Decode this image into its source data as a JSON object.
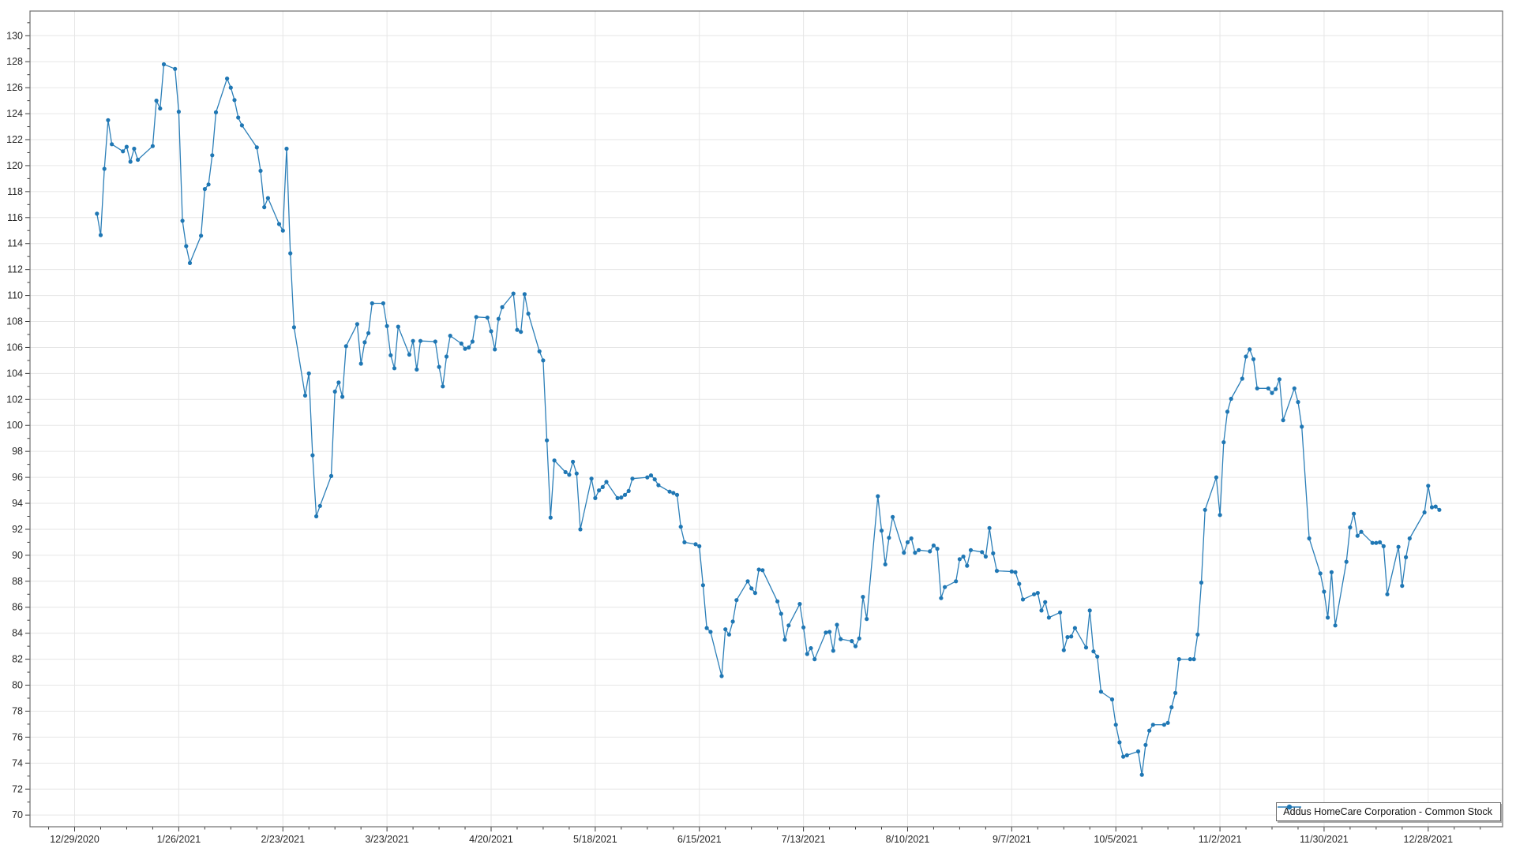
{
  "chart_data": {
    "type": "line",
    "title": "",
    "legend_position": "bottom-right-inside",
    "grid": true,
    "colors": {
      "series": "#2c7fb8",
      "marker": "#1f77b4",
      "gridline": "#e6e6e6",
      "plot_border": "#6e6e6e",
      "tick": "#3a3a3a",
      "background": "#ffffff"
    },
    "xlim": [
      "12/17/2020",
      "1/17/2022"
    ],
    "ylim": [
      69.1,
      131.9
    ],
    "y_ticks": [
      70,
      72,
      74,
      76,
      78,
      80,
      82,
      84,
      86,
      88,
      90,
      92,
      94,
      96,
      98,
      100,
      102,
      104,
      106,
      108,
      110,
      112,
      114,
      116,
      118,
      120,
      122,
      124,
      126,
      128,
      130
    ],
    "x_tick_labels": [
      "12/29/2020",
      "1/26/2021",
      "2/23/2021",
      "3/23/2021",
      "4/20/2021",
      "5/18/2021",
      "6/15/2021",
      "7/13/2021",
      "8/10/2021",
      "9/7/2021",
      "10/5/2021",
      "11/2/2021",
      "11/30/2021",
      "12/28/2021"
    ],
    "series": [
      {
        "name": "Addus HomeCare Corporation - Common Stock",
        "dates": [
          "1/4/2021",
          "1/5/2021",
          "1/6/2021",
          "1/7/2021",
          "1/8/2021",
          "1/11/2021",
          "1/12/2021",
          "1/13/2021",
          "1/14/2021",
          "1/15/2021",
          "1/19/2021",
          "1/20/2021",
          "1/21/2021",
          "1/22/2021",
          "1/25/2021",
          "1/26/2021",
          "1/27/2021",
          "1/28/2021",
          "1/29/2021",
          "2/1/2021",
          "2/2/2021",
          "2/3/2021",
          "2/4/2021",
          "2/5/2021",
          "2/8/2021",
          "2/9/2021",
          "2/10/2021",
          "2/11/2021",
          "2/12/2021",
          "2/16/2021",
          "2/17/2021",
          "2/18/2021",
          "2/19/2021",
          "2/22/2021",
          "2/23/2021",
          "2/24/2021",
          "2/25/2021",
          "2/26/2021",
          "3/1/2021",
          "3/2/2021",
          "3/3/2021",
          "3/4/2021",
          "3/5/2021",
          "3/8/2021",
          "3/9/2021",
          "3/10/2021",
          "3/11/2021",
          "3/12/2021",
          "3/15/2021",
          "3/16/2021",
          "3/17/2021",
          "3/18/2021",
          "3/19/2021",
          "3/22/2021",
          "3/23/2021",
          "3/24/2021",
          "3/25/2021",
          "3/26/2021",
          "3/29/2021",
          "3/30/2021",
          "3/31/2021",
          "4/1/2021",
          "4/5/2021",
          "4/6/2021",
          "4/7/2021",
          "4/8/2021",
          "4/9/2021",
          "4/12/2021",
          "4/13/2021",
          "4/14/2021",
          "4/15/2021",
          "4/16/2021",
          "4/19/2021",
          "4/20/2021",
          "4/21/2021",
          "4/22/2021",
          "4/23/2021",
          "4/26/2021",
          "4/27/2021",
          "4/28/2021",
          "4/29/2021",
          "4/30/2021",
          "5/3/2021",
          "5/4/2021",
          "5/5/2021",
          "5/6/2021",
          "5/7/2021",
          "5/10/2021",
          "5/11/2021",
          "5/12/2021",
          "5/13/2021",
          "5/14/2021",
          "5/17/2021",
          "5/18/2021",
          "5/19/2021",
          "5/20/2021",
          "5/21/2021",
          "5/24/2021",
          "5/25/2021",
          "5/26/2021",
          "5/27/2021",
          "5/28/2021",
          "6/1/2021",
          "6/2/2021",
          "6/3/2021",
          "6/4/2021",
          "6/7/2021",
          "6/8/2021",
          "6/9/2021",
          "6/10/2021",
          "6/11/2021",
          "6/14/2021",
          "6/15/2021",
          "6/16/2021",
          "6/17/2021",
          "6/18/2021",
          "6/21/2021",
          "6/22/2021",
          "6/23/2021",
          "6/24/2021",
          "6/25/2021",
          "6/28/2021",
          "6/29/2021",
          "6/30/2021",
          "7/1/2021",
          "7/2/2021",
          "7/6/2021",
          "7/7/2021",
          "7/8/2021",
          "7/9/2021",
          "7/12/2021",
          "7/13/2021",
          "7/14/2021",
          "7/15/2021",
          "7/16/2021",
          "7/19/2021",
          "7/20/2021",
          "7/21/2021",
          "7/22/2021",
          "7/23/2021",
          "7/26/2021",
          "7/27/2021",
          "7/28/2021",
          "7/29/2021",
          "7/30/2021",
          "8/2/2021",
          "8/3/2021",
          "8/4/2021",
          "8/5/2021",
          "8/6/2021",
          "8/9/2021",
          "8/10/2021",
          "8/11/2021",
          "8/12/2021",
          "8/13/2021",
          "8/16/2021",
          "8/17/2021",
          "8/18/2021",
          "8/19/2021",
          "8/20/2021",
          "8/23/2021",
          "8/24/2021",
          "8/25/2021",
          "8/26/2021",
          "8/27/2021",
          "8/30/2021",
          "8/31/2021",
          "9/1/2021",
          "9/2/2021",
          "9/3/2021",
          "9/7/2021",
          "9/8/2021",
          "9/9/2021",
          "9/10/2021",
          "9/13/2021",
          "9/14/2021",
          "9/15/2021",
          "9/16/2021",
          "9/17/2021",
          "9/20/2021",
          "9/21/2021",
          "9/22/2021",
          "9/23/2021",
          "9/24/2021",
          "9/27/2021",
          "9/28/2021",
          "9/29/2021",
          "9/30/2021",
          "10/1/2021",
          "10/4/2021",
          "10/5/2021",
          "10/6/2021",
          "10/7/2021",
          "10/8/2021",
          "10/11/2021",
          "10/12/2021",
          "10/13/2021",
          "10/14/2021",
          "10/15/2021",
          "10/18/2021",
          "10/19/2021",
          "10/20/2021",
          "10/21/2021",
          "10/22/2021",
          "10/25/2021",
          "10/26/2021",
          "10/27/2021",
          "10/28/2021",
          "10/29/2021",
          "11/1/2021",
          "11/2/2021",
          "11/3/2021",
          "11/4/2021",
          "11/5/2021",
          "11/8/2021",
          "11/9/2021",
          "11/10/2021",
          "11/11/2021",
          "11/12/2021",
          "11/15/2021",
          "11/16/2021",
          "11/17/2021",
          "11/18/2021",
          "11/19/2021",
          "11/22/2021",
          "11/23/2021",
          "11/24/2021",
          "11/26/2021",
          "11/29/2021",
          "11/30/2021",
          "12/1/2021",
          "12/2/2021",
          "12/3/2021",
          "12/6/2021",
          "12/7/2021",
          "12/8/2021",
          "12/9/2021",
          "12/10/2021",
          "12/13/2021",
          "12/14/2021",
          "12/15/2021",
          "12/16/2021",
          "12/17/2021",
          "12/20/2021",
          "12/21/2021",
          "12/22/2021",
          "12/23/2021",
          "12/27/2021",
          "12/28/2021",
          "12/29/2021",
          "12/30/2021",
          "12/31/2021"
        ],
        "closes": [
          116.3,
          114.65,
          119.75,
          123.5,
          121.65,
          121.1,
          121.45,
          120.3,
          121.3,
          120.45,
          121.5,
          125.0,
          124.4,
          127.8,
          127.45,
          124.15,
          115.75,
          113.8,
          112.5,
          114.6,
          118.2,
          118.55,
          120.8,
          124.1,
          126.7,
          126.0,
          125.05,
          123.7,
          123.1,
          121.4,
          119.6,
          116.8,
          117.5,
          115.5,
          115.0,
          121.3,
          113.25,
          107.55,
          102.3,
          104.0,
          97.7,
          93.0,
          93.8,
          96.1,
          102.6,
          103.3,
          102.2,
          106.1,
          107.8,
          104.75,
          106.4,
          107.1,
          109.4,
          109.4,
          107.65,
          105.4,
          104.4,
          107.6,
          105.45,
          106.5,
          104.3,
          106.5,
          106.45,
          104.5,
          103.0,
          105.3,
          106.9,
          106.3,
          105.9,
          106.0,
          106.45,
          108.35,
          108.3,
          107.25,
          105.85,
          108.2,
          109.1,
          110.15,
          107.35,
          107.2,
          110.1,
          108.6,
          105.7,
          105.0,
          98.85,
          92.9,
          97.3,
          96.4,
          96.2,
          97.2,
          96.3,
          92.0,
          95.9,
          94.4,
          95.0,
          95.25,
          95.65,
          94.4,
          94.45,
          94.65,
          94.95,
          95.9,
          96.0,
          96.15,
          95.85,
          95.4,
          94.9,
          94.8,
          94.65,
          92.2,
          91.0,
          90.85,
          90.7,
          87.7,
          84.4,
          84.1,
          80.7,
          84.3,
          83.9,
          84.9,
          86.55,
          88.0,
          87.45,
          87.1,
          88.9,
          88.85,
          86.45,
          85.5,
          83.5,
          84.6,
          86.25,
          84.45,
          82.4,
          82.85,
          82.0,
          84.05,
          84.1,
          82.65,
          84.65,
          83.55,
          83.4,
          83.0,
          83.6,
          86.8,
          85.1,
          94.55,
          91.9,
          89.3,
          91.35,
          92.95,
          90.2,
          91.0,
          91.3,
          90.2,
          90.4,
          90.3,
          90.75,
          90.5,
          86.7,
          87.55,
          88.0,
          89.7,
          89.9,
          89.2,
          90.4,
          90.25,
          89.9,
          92.1,
          90.15,
          88.8,
          88.75,
          88.7,
          87.8,
          86.6,
          87.0,
          87.1,
          85.75,
          86.4,
          85.2,
          85.6,
          82.7,
          83.7,
          83.75,
          84.4,
          82.9,
          85.75,
          82.6,
          82.2,
          79.5,
          78.9,
          76.95,
          75.6,
          74.5,
          74.6,
          74.9,
          73.1,
          75.4,
          76.5,
          76.95,
          76.95,
          77.1,
          78.3,
          79.4,
          82.0,
          82.0,
          82.0,
          83.9,
          87.9,
          93.5,
          96.0,
          93.1,
          98.7,
          101.05,
          102.05,
          103.6,
          105.3,
          105.85,
          105.1,
          102.85,
          102.85,
          102.5,
          102.8,
          103.55,
          100.4,
          102.85,
          101.8,
          99.9,
          91.3,
          88.6,
          87.2,
          85.2,
          88.7,
          84.6,
          89.5,
          92.15,
          93.2,
          91.5,
          91.8,
          90.95,
          90.95,
          91.0,
          90.7,
          87.0,
          90.65,
          87.65,
          89.85,
          91.3,
          93.3,
          95.35,
          93.7,
          93.75,
          93.5
        ]
      }
    ]
  }
}
